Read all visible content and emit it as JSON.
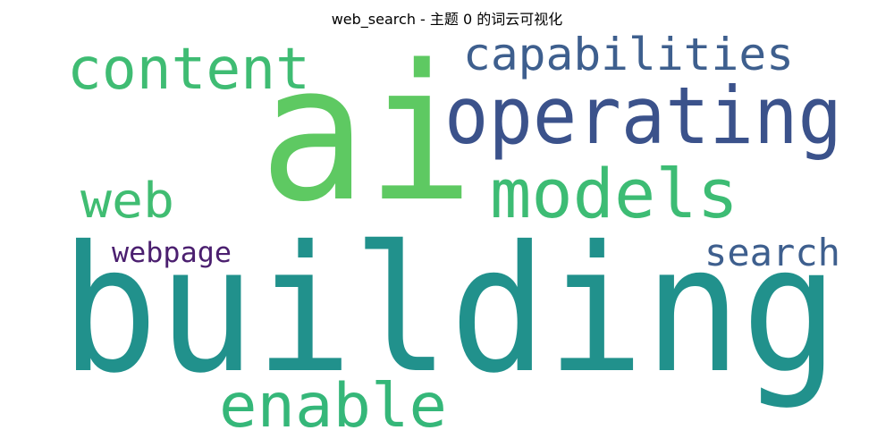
{
  "title": "web_search - 主题 0 的词云可视化",
  "words": [
    {
      "key": "ai",
      "text": "ai",
      "color": "#5ec962"
    },
    {
      "key": "building",
      "text": "building",
      "color": "#21918c"
    },
    {
      "key": "operating",
      "text": "operating",
      "color": "#3b528b"
    },
    {
      "key": "content",
      "text": "content",
      "color": "#3fbc73"
    },
    {
      "key": "capabilities",
      "text": "capabilities",
      "color": "#3e5f8e"
    },
    {
      "key": "models",
      "text": "models",
      "color": "#3dbc74"
    },
    {
      "key": "web",
      "text": "web",
      "color": "#40bd72"
    },
    {
      "key": "search",
      "text": "search",
      "color": "#3e5f8e"
    },
    {
      "key": "webpage",
      "text": "webpage",
      "color": "#4b1f6f"
    },
    {
      "key": "enable",
      "text": "enable",
      "color": "#35b779"
    }
  ]
}
